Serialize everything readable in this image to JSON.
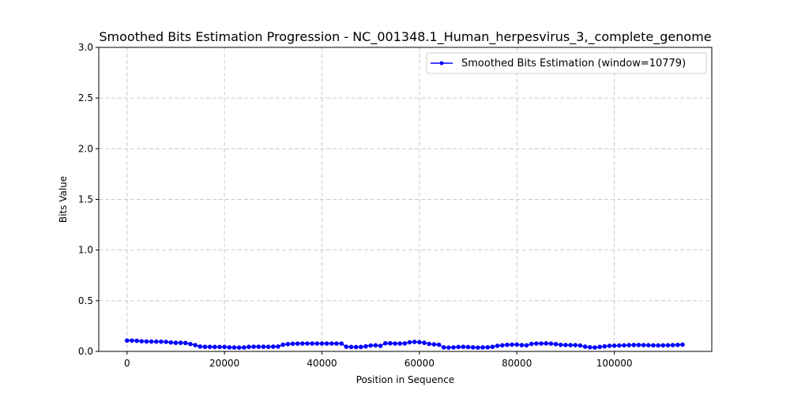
{
  "chart_data": {
    "type": "line",
    "title": "Smoothed Bits Estimation Progression - NC_001348.1_Human_herpesvirus_3,_complete_genome",
    "xlabel": "Position in Sequence",
    "ylabel": "Bits Value",
    "xlim": [
      -5800,
      120000
    ],
    "ylim": [
      0,
      3.0
    ],
    "xticks": [
      0,
      20000,
      40000,
      60000,
      80000,
      100000
    ],
    "xtick_labels": [
      "0",
      "20000",
      "40000",
      "60000",
      "80000",
      "100000"
    ],
    "yticks": [
      0.0,
      0.5,
      1.0,
      1.5,
      2.0,
      2.5,
      3.0
    ],
    "ytick_labels": [
      "0.0",
      "0.5",
      "1.0",
      "1.5",
      "2.0",
      "2.5",
      "3.0"
    ],
    "grid": true,
    "legend_position": "top-right",
    "series": [
      {
        "name": "Smoothed Bits Estimation (window=10779)",
        "color": "#0000ff",
        "marker": "circle",
        "x": [
          0,
          1000,
          2000,
          3000,
          4000,
          5000,
          6000,
          7000,
          8000,
          9000,
          10000,
          11000,
          12000,
          13000,
          14000,
          15000,
          16000,
          17000,
          18000,
          19000,
          20000,
          21000,
          22000,
          23000,
          24000,
          25000,
          26000,
          27000,
          28000,
          29000,
          30000,
          31000,
          32000,
          33000,
          34000,
          35000,
          36000,
          37000,
          38000,
          39000,
          40000,
          41000,
          42000,
          43000,
          44000,
          45000,
          46000,
          47000,
          48000,
          49000,
          50000,
          51000,
          52000,
          53000,
          54000,
          55000,
          56000,
          57000,
          58000,
          59000,
          60000,
          61000,
          62000,
          63000,
          64000,
          65000,
          66000,
          67000,
          68000,
          69000,
          70000,
          71000,
          72000,
          73000,
          74000,
          75000,
          76000,
          77000,
          78000,
          79000,
          80000,
          81000,
          82000,
          83000,
          84000,
          85000,
          86000,
          87000,
          88000,
          89000,
          90000,
          91000,
          92000,
          93000,
          94000,
          95000,
          96000,
          97000,
          98000,
          99000,
          100000,
          101000,
          102000,
          103000,
          104000,
          105000,
          106000,
          107000,
          108000,
          109000,
          110000,
          111000,
          112000,
          113000,
          114000
        ],
        "y": [
          0.107,
          0.107,
          0.105,
          0.1,
          0.098,
          0.097,
          0.097,
          0.096,
          0.094,
          0.088,
          0.085,
          0.085,
          0.083,
          0.073,
          0.062,
          0.048,
          0.045,
          0.045,
          0.044,
          0.044,
          0.044,
          0.04,
          0.039,
          0.038,
          0.039,
          0.045,
          0.046,
          0.046,
          0.046,
          0.046,
          0.047,
          0.048,
          0.066,
          0.072,
          0.076,
          0.077,
          0.078,
          0.078,
          0.078,
          0.078,
          0.078,
          0.078,
          0.078,
          0.078,
          0.078,
          0.046,
          0.044,
          0.043,
          0.044,
          0.05,
          0.058,
          0.06,
          0.055,
          0.08,
          0.08,
          0.078,
          0.078,
          0.079,
          0.09,
          0.094,
          0.091,
          0.085,
          0.074,
          0.07,
          0.066,
          0.04,
          0.038,
          0.04,
          0.044,
          0.045,
          0.043,
          0.04,
          0.038,
          0.04,
          0.041,
          0.045,
          0.055,
          0.06,
          0.065,
          0.067,
          0.068,
          0.062,
          0.06,
          0.074,
          0.078,
          0.078,
          0.079,
          0.077,
          0.072,
          0.065,
          0.063,
          0.062,
          0.062,
          0.058,
          0.047,
          0.041,
          0.039,
          0.045,
          0.05,
          0.055,
          0.057,
          0.058,
          0.06,
          0.062,
          0.063,
          0.063,
          0.062,
          0.061,
          0.06,
          0.059,
          0.06,
          0.061,
          0.062,
          0.064,
          0.067
        ]
      }
    ]
  }
}
